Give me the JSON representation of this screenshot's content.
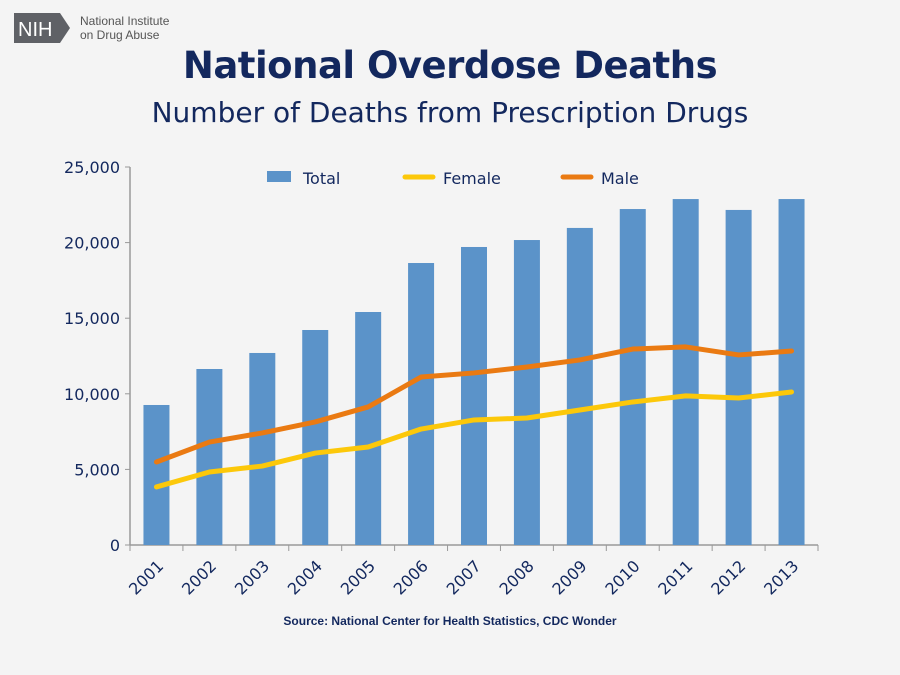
{
  "logo": {
    "mark": "NIH",
    "line1": "National Institute",
    "line2": "on Drug Abuse"
  },
  "title": "National Overdose Deaths",
  "subtitle": "Number of Deaths from Prescription Drugs",
  "source": "Source: National Center for Health Statistics, CDC Wonder",
  "chart_data": {
    "type": "bar+line",
    "title": "National Overdose Deaths",
    "subtitle": "Number of Deaths from Prescription Drugs",
    "categories": [
      "2001",
      "2002",
      "2003",
      "2004",
      "2005",
      "2006",
      "2007",
      "2008",
      "2009",
      "2010",
      "2011",
      "2012",
      "2013"
    ],
    "ylim": [
      0,
      25000
    ],
    "yticks": [
      "0",
      "5,000",
      "10,000",
      "15,000",
      "20,000",
      "25,000"
    ],
    "grid": false,
    "legend": "top",
    "series": [
      {
        "name": "Total",
        "type": "bar",
        "color": "#5b93c9",
        "values": [
          9260,
          11640,
          12700,
          14220,
          15410,
          18650,
          19710,
          20170,
          20970,
          22220,
          22880,
          22160,
          22880
        ]
      },
      {
        "name": "Female",
        "type": "line",
        "color": "#fcc80a",
        "values": [
          3840,
          4830,
          5220,
          6080,
          6480,
          7670,
          8270,
          8400,
          8930,
          9460,
          9860,
          9720,
          10120
        ]
      },
      {
        "name": "Male",
        "type": "line",
        "color": "#ea7a12",
        "values": [
          5490,
          6810,
          7410,
          8140,
          9130,
          11110,
          11380,
          11770,
          12240,
          12960,
          13100,
          12570,
          12830
        ]
      }
    ]
  }
}
